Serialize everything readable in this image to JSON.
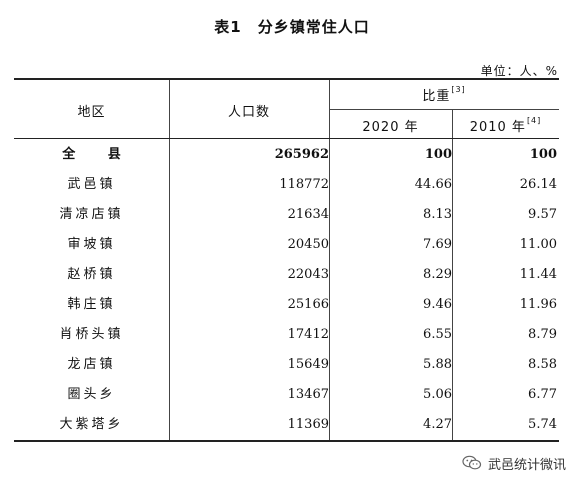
{
  "title": "表1　分乡镇常住人口",
  "unit": "单位：人、%",
  "header": {
    "region": "地区",
    "population": "人口数",
    "proportion": "比重",
    "proportion_note": "[3]",
    "year_2020": "2020 年",
    "year_2010": "2010 年",
    "year_2010_note": "[4]"
  },
  "rows": [
    {
      "name": "全 县",
      "population": "265962",
      "y2020": "100",
      "y2010": "100"
    },
    {
      "name": "武邑镇",
      "population": "118772",
      "y2020": "44.66",
      "y2010": "26.14"
    },
    {
      "name": "清凉店镇",
      "population": "21634",
      "y2020": "8.13",
      "y2010": "9.57"
    },
    {
      "name": "审坡镇",
      "population": "20450",
      "y2020": "7.69",
      "y2010": "11.00"
    },
    {
      "name": "赵桥镇",
      "population": "22043",
      "y2020": "8.29",
      "y2010": "11.44"
    },
    {
      "name": "韩庄镇",
      "population": "25166",
      "y2020": "9.46",
      "y2010": "11.96"
    },
    {
      "name": "肖桥头镇",
      "population": "17412",
      "y2020": "6.55",
      "y2010": "8.79"
    },
    {
      "name": "龙店镇",
      "population": "15649",
      "y2020": "5.88",
      "y2010": "8.58"
    },
    {
      "name": "圈头乡",
      "population": "13467",
      "y2020": "5.06",
      "y2010": "6.77"
    },
    {
      "name": "大紫塔乡",
      "population": "11369",
      "y2020": "4.27",
      "y2010": "5.74"
    }
  ],
  "watermark": {
    "text": "武邑统计微讯",
    "icon": "wechat-icon"
  }
}
